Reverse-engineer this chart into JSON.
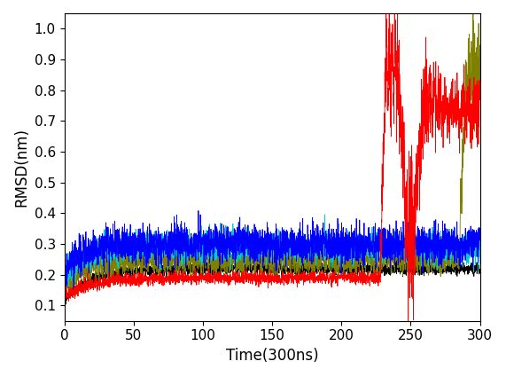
{
  "title": "",
  "xlabel": "Time(300ns)",
  "ylabel": "RMSD(nm)",
  "xlim": [
    0,
    300
  ],
  "ylim": [
    0.05,
    1.05
  ],
  "yticks": [
    0.1,
    0.2,
    0.3,
    0.4,
    0.5,
    0.6,
    0.7,
    0.8,
    0.9,
    1.0
  ],
  "xticks": [
    0,
    50,
    100,
    150,
    200,
    250,
    300
  ],
  "n_points": 3000,
  "colors": {
    "WS24": "#FF0000",
    "WS51": "#0000FF",
    "WS54_v1": "#00CCCC",
    "WS54_v2": "#808000",
    "WS81": "#000000"
  },
  "seed": 42
}
